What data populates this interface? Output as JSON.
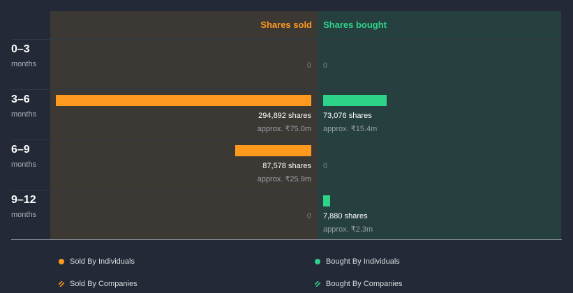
{
  "colors": {
    "sold": "#ff9a1f",
    "bought": "#2ed38a",
    "sold_panel": "#3c3834",
    "bought_panel": "#25403f",
    "background": "#232936"
  },
  "chart_data": {
    "type": "bar",
    "column_headers": {
      "sold": "Shares sold",
      "bought": "Shares bought"
    },
    "categories": [
      {
        "period": "0–3",
        "unit": "months"
      },
      {
        "period": "3–6",
        "unit": "months"
      },
      {
        "period": "6–9",
        "unit": "months"
      },
      {
        "period": "9–12",
        "unit": "months"
      }
    ],
    "series": [
      {
        "name": "Shares sold",
        "values": [
          0,
          294892,
          87578,
          0
        ],
        "labels": [
          "0",
          "294,892 shares",
          "87,578 shares",
          "0"
        ],
        "approx": [
          "",
          "approx. ₹75.0m",
          "approx. ₹25.9m",
          ""
        ]
      },
      {
        "name": "Shares bought",
        "values": [
          0,
          73076,
          0,
          7880
        ],
        "labels": [
          "0",
          "73,076 shares",
          "0",
          "7,880 shares"
        ],
        "approx": [
          "",
          "approx. ₹15.4m",
          "",
          "approx. ₹2.3m"
        ]
      }
    ],
    "legend": [
      {
        "label": "Sold By Individuals",
        "marker": "dot-icon",
        "color": "#ff9a1f"
      },
      {
        "label": "Bought By Individuals",
        "marker": "dot-icon",
        "color": "#2ed38a"
      },
      {
        "label": "Sold By Companies",
        "marker": "hatch-icon",
        "color": "#ff9a1f"
      },
      {
        "label": "Bought By Companies",
        "marker": "hatch-icon",
        "color": "#2ed38a"
      }
    ]
  }
}
